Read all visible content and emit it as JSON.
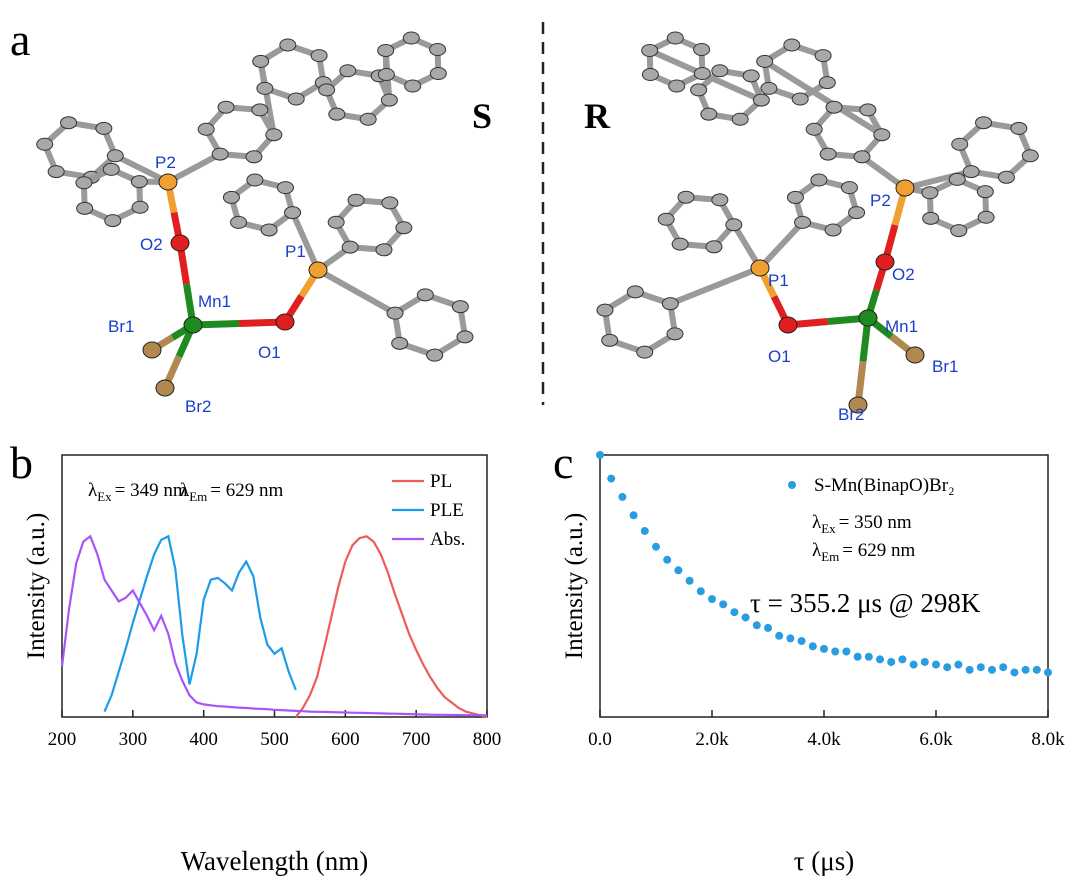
{
  "panel_a": {
    "label": "a",
    "molecules": [
      {
        "configuration": "S",
        "atoms": [
          "P2",
          "O2",
          "Mn1",
          "O1",
          "P1",
          "Br1",
          "Br2"
        ]
      },
      {
        "configuration": "R",
        "atoms": [
          "P2",
          "O2",
          "Mn1",
          "O1",
          "P1",
          "Br1",
          "Br2"
        ]
      }
    ]
  },
  "chart_data": [
    {
      "type": "line",
      "panel": "b",
      "x_label": "Wavelength (nm)",
      "y_label": "Intensity (a.u.)",
      "x": [
        200,
        210,
        220,
        230,
        240,
        250,
        260,
        270,
        280,
        290,
        300,
        310,
        320,
        330,
        340,
        350,
        360,
        370,
        380,
        390,
        400,
        410,
        420,
        430,
        440,
        450,
        460,
        470,
        480,
        490,
        500,
        510,
        520,
        530,
        540,
        550,
        560,
        570,
        580,
        590,
        600,
        610,
        620,
        630,
        640,
        650,
        660,
        670,
        680,
        690,
        700,
        710,
        720,
        730,
        740,
        750,
        760,
        770,
        780,
        790,
        800
      ],
      "series": [
        {
          "name": "PL",
          "color": "#f05a5a",
          "values": [
            null,
            null,
            null,
            null,
            null,
            null,
            null,
            null,
            null,
            null,
            null,
            null,
            null,
            null,
            null,
            null,
            null,
            null,
            null,
            null,
            null,
            null,
            null,
            null,
            null,
            null,
            null,
            null,
            null,
            null,
            null,
            null,
            null,
            0.0,
            0.05,
            0.12,
            0.22,
            0.38,
            0.55,
            0.72,
            0.86,
            0.95,
            0.99,
            1.0,
            0.97,
            0.9,
            0.8,
            0.68,
            0.57,
            0.46,
            0.37,
            0.29,
            0.22,
            0.16,
            0.11,
            0.08,
            0.05,
            0.03,
            0.02,
            0.01,
            0.0
          ]
        },
        {
          "name": "PLE",
          "color": "#1e9be8",
          "values": [
            null,
            null,
            null,
            null,
            null,
            null,
            0.03,
            0.12,
            0.25,
            0.38,
            0.52,
            0.65,
            0.78,
            0.9,
            0.98,
            1.0,
            0.82,
            0.45,
            0.18,
            0.35,
            0.65,
            0.76,
            0.77,
            0.74,
            0.7,
            0.8,
            0.86,
            0.78,
            0.55,
            0.4,
            0.35,
            0.38,
            0.25,
            0.15,
            null,
            null,
            null,
            null,
            null,
            null,
            null,
            null,
            null,
            null,
            null,
            null,
            null,
            null,
            null,
            null,
            null,
            null,
            null,
            null,
            null,
            null,
            null,
            null,
            null,
            null,
            null
          ]
        },
        {
          "name": "Abs.",
          "color": "#a855f7",
          "values": [
            0.28,
            0.6,
            0.85,
            0.97,
            1.0,
            0.9,
            0.76,
            0.7,
            0.64,
            0.66,
            0.7,
            0.63,
            0.56,
            0.48,
            0.56,
            0.46,
            0.3,
            0.2,
            0.12,
            0.08,
            0.07,
            0.065,
            0.06,
            0.058,
            0.055,
            0.052,
            0.05,
            0.047,
            0.045,
            0.043,
            0.04,
            0.038,
            0.036,
            0.034,
            0.032,
            0.03,
            0.029,
            0.028,
            0.027,
            0.026,
            0.025,
            0.024,
            0.023,
            0.022,
            0.021,
            0.02,
            0.019,
            0.018,
            0.017,
            0.016,
            0.015,
            0.014,
            0.013,
            0.012,
            0.012,
            0.011,
            0.011,
            0.01,
            0.01,
            0.01,
            0.01
          ]
        }
      ],
      "xlim": [
        200,
        800
      ],
      "xticks": [
        200,
        300,
        400,
        500,
        600,
        700,
        800
      ],
      "ylim": [
        0,
        1.45
      ],
      "legend": "upper right",
      "annotations": [
        {
          "symbol": "λ",
          "sub": "Ex",
          "text": "= 349 nm"
        },
        {
          "symbol": "λ",
          "sub": "Em",
          "text": "= 629 nm"
        }
      ]
    },
    {
      "type": "scatter",
      "panel": "c",
      "x_label": "τ (μs)",
      "y_label": "Intensity (a.u.)",
      "x": [
        0,
        200,
        400,
        600,
        800,
        1000,
        1200,
        1400,
        1600,
        1800,
        2000,
        2200,
        2400,
        2600,
        2800,
        3000,
        3200,
        3400,
        3600,
        3800,
        4000,
        4200,
        4400,
        4600,
        4800,
        5000,
        5200,
        5400,
        5600,
        5800,
        6000,
        6200,
        6400,
        6600,
        6800,
        7000,
        7200,
        7400,
        7600,
        7800,
        8000
      ],
      "series": [
        {
          "name": "S-Mn(BinapO)Br₂",
          "color": "#2a9de0",
          "values": [
            1.0,
            0.91,
            0.84,
            0.77,
            0.71,
            0.65,
            0.6,
            0.56,
            0.52,
            0.48,
            0.45,
            0.43,
            0.4,
            0.38,
            0.35,
            0.34,
            0.31,
            0.3,
            0.29,
            0.27,
            0.26,
            0.25,
            0.25,
            0.23,
            0.23,
            0.22,
            0.21,
            0.22,
            0.2,
            0.21,
            0.2,
            0.19,
            0.2,
            0.18,
            0.19,
            0.18,
            0.19,
            0.17,
            0.18,
            0.18,
            0.17
          ]
        }
      ],
      "xlim": [
        0,
        8000
      ],
      "xticks": [
        {
          "value": 0,
          "label": "0.0"
        },
        {
          "value": 2000,
          "label": "2.0k"
        },
        {
          "value": 4000,
          "label": "4.0k"
        },
        {
          "value": 6000,
          "label": "6.0k"
        },
        {
          "value": 8000,
          "label": "8.0k"
        }
      ],
      "ylim": [
        0,
        1
      ],
      "legend": "upper right",
      "annotations": [
        {
          "symbol": "λ",
          "sub": "Ex",
          "text": "= 350 nm"
        },
        {
          "symbol": "λ",
          "sub": "Em",
          "text": "= 629 nm"
        }
      ],
      "note": "τ = 355.2 μs @ 298K"
    }
  ]
}
